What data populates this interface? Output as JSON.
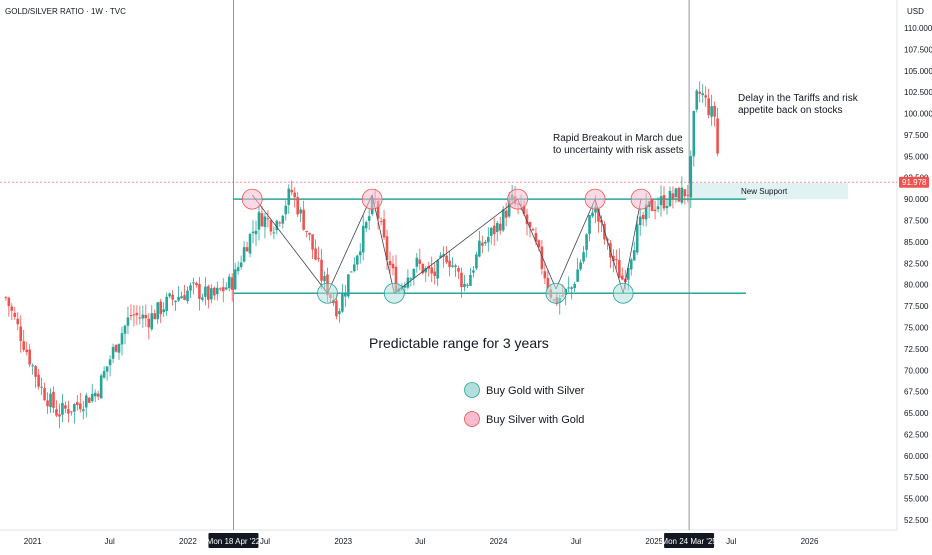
{
  "header": {
    "title": "GOLD/SILVER RATIO · 1W · TVC"
  },
  "price_axis": {
    "unit": "USD",
    "current_price": "91.978"
  },
  "colors": {
    "up": "#26a69a",
    "down": "#ef5350",
    "range": "#26a69a",
    "buy_gold": "#b2dfdb",
    "buy_silver": "#f8bbd0",
    "support_box": "#e0f2f1",
    "text": "#131722",
    "axis_bg": "#131722",
    "price_tag": "#ef5350"
  },
  "annotations": {
    "range_text": "Predictable range for 3 years",
    "breakout_line1": "Rapid Breakout in March due",
    "breakout_line2": "to uncertainty with risk assets",
    "tariff_line1": "Delay in the Tariffs and risk",
    "tariff_line2": "appetite back on stocks",
    "support_label": "New Support"
  },
  "legend": {
    "buy_gold": "Buy Gold with Silver",
    "buy_silver": "Buy Silver with Gold"
  },
  "chart_data": {
    "type": "candlestick",
    "symbol": "GOLD/SILVER RATIO",
    "interval": "1W",
    "source": "TVC",
    "ylim": [
      51.5,
      112.5
    ],
    "y_ticks": [
      "110.000",
      "107.500",
      "105.000",
      "102.500",
      "100.000",
      "97.500",
      "95.000",
      "92.500",
      "90.000",
      "87.500",
      "85.000",
      "82.500",
      "80.000",
      "77.500",
      "75.000",
      "72.500",
      "70.000",
      "67.500",
      "65.000",
      "62.500",
      "60.000",
      "57.500",
      "55.000",
      "52.500"
    ],
    "y_tick_values": [
      110,
      107.5,
      105,
      102.5,
      100,
      97.5,
      95,
      92.5,
      90,
      87.5,
      85,
      82.5,
      80,
      77.5,
      75,
      72.5,
      70,
      67.5,
      65,
      62.5,
      60,
      57.5,
      55,
      52.5
    ],
    "x_ticks": [
      {
        "label": "2021",
        "date": "2021-01-01"
      },
      {
        "label": "Jul",
        "date": "2021-07-01"
      },
      {
        "label": "2022",
        "date": "2022-01-01"
      },
      {
        "label": "Jul",
        "date": "2022-07-01"
      },
      {
        "label": "2023",
        "date": "2023-01-01"
      },
      {
        "label": "Jul",
        "date": "2023-07-01"
      },
      {
        "label": "2024",
        "date": "2024-01-01"
      },
      {
        "label": "Jul",
        "date": "2024-07-01"
      },
      {
        "label": "2025",
        "date": "2025-01-01"
      },
      {
        "label": "Jul",
        "date": "2025-07-01"
      },
      {
        "label": "2026",
        "date": "2026-01-01"
      }
    ],
    "x_start": "2020-10-28",
    "x_end": "2026-04-25",
    "highlight_dates": [
      {
        "label": "Mon 18 Apr '22",
        "date": "2022-04-18"
      },
      {
        "label": "Mon 24 Mar '25",
        "date": "2025-03-24"
      }
    ],
    "range_levels": {
      "top": 90.0,
      "bottom": 79.0
    },
    "support_zone": {
      "from": 90.0,
      "to": 91.9,
      "start": "2025-03-24"
    },
    "current_price": 91.978,
    "path": [
      {
        "date": "2020-10-30",
        "value": 78.5
      },
      {
        "date": "2020-12-05",
        "value": 74.0
      },
      {
        "date": "2021-01-20",
        "value": 68.0
      },
      {
        "date": "2021-03-01",
        "value": 65.0
      },
      {
        "date": "2021-04-15",
        "value": 66.0
      },
      {
        "date": "2021-06-01",
        "value": 67.5
      },
      {
        "date": "2021-07-15",
        "value": 73.0
      },
      {
        "date": "2021-08-20",
        "value": 76.5
      },
      {
        "date": "2021-10-01",
        "value": 76.0
      },
      {
        "date": "2021-11-15",
        "value": 78.0
      },
      {
        "date": "2022-01-10",
        "value": 79.5
      },
      {
        "date": "2022-03-01",
        "value": 78.5
      },
      {
        "date": "2022-04-18",
        "value": 80.5
      },
      {
        "date": "2022-05-15",
        "value": 84.5
      },
      {
        "date": "2022-06-20",
        "value": 88.0
      },
      {
        "date": "2022-07-25",
        "value": 87.0
      },
      {
        "date": "2022-09-01",
        "value": 91.0
      },
      {
        "date": "2022-10-10",
        "value": 86.0
      },
      {
        "date": "2022-11-10",
        "value": 81.0
      },
      {
        "date": "2022-12-20",
        "value": 77.0
      },
      {
        "date": "2023-01-20",
        "value": 82.0
      },
      {
        "date": "2023-02-25",
        "value": 87.0
      },
      {
        "date": "2023-03-15",
        "value": 90.0
      },
      {
        "date": "2023-04-15",
        "value": 83.0
      },
      {
        "date": "2023-05-10",
        "value": 79.5
      },
      {
        "date": "2023-06-20",
        "value": 82.5
      },
      {
        "date": "2023-08-01",
        "value": 81.0
      },
      {
        "date": "2023-09-01",
        "value": 83.5
      },
      {
        "date": "2023-10-15",
        "value": 79.8
      },
      {
        "date": "2023-11-20",
        "value": 84.5
      },
      {
        "date": "2024-01-01",
        "value": 87.0
      },
      {
        "date": "2024-02-01",
        "value": 89.8
      },
      {
        "date": "2024-03-01",
        "value": 88.0
      },
      {
        "date": "2024-04-01",
        "value": 84.0
      },
      {
        "date": "2024-05-10",
        "value": 78.0
      },
      {
        "date": "2024-06-20",
        "value": 79.5
      },
      {
        "date": "2024-07-20",
        "value": 84.0
      },
      {
        "date": "2024-08-10",
        "value": 89.5
      },
      {
        "date": "2024-09-15",
        "value": 84.0
      },
      {
        "date": "2024-10-20",
        "value": 80.5
      },
      {
        "date": "2024-11-20",
        "value": 86.0
      },
      {
        "date": "2024-12-20",
        "value": 89.0
      },
      {
        "date": "2025-02-01",
        "value": 90.0
      },
      {
        "date": "2025-03-01",
        "value": 90.5
      },
      {
        "date": "2025-03-24",
        "value": 91.0
      },
      {
        "date": "2025-04-07",
        "value": 101.5
      },
      {
        "date": "2025-04-21",
        "value": 102.5
      },
      {
        "date": "2025-05-15",
        "value": 100.0
      },
      {
        "date": "2025-05-26",
        "value": 99.8
      },
      {
        "date": "2025-06-02",
        "value": 91.98
      }
    ],
    "buy_gold_points": [
      {
        "date": "2022-11-25",
        "value": 79.0
      },
      {
        "date": "2023-05-01",
        "value": 79.0
      },
      {
        "date": "2024-05-15",
        "value": 79.0
      },
      {
        "date": "2024-10-20",
        "value": 79.0
      }
    ],
    "buy_silver_points": [
      {
        "date": "2022-06-01",
        "value": 90.0
      },
      {
        "date": "2023-03-10",
        "value": 90.0
      },
      {
        "date": "2024-02-15",
        "value": 90.0
      },
      {
        "date": "2024-08-15",
        "value": 90.0
      },
      {
        "date": "2024-12-01",
        "value": 90.0
      }
    ],
    "trend_lines": [
      {
        "from": {
          "date": "2022-06-01",
          "value": 90.5
        },
        "to": {
          "date": "2022-11-25",
          "value": 79.0
        }
      },
      {
        "from": {
          "date": "2022-11-25",
          "value": 79.0
        },
        "to": {
          "date": "2023-03-10",
          "value": 90.5
        }
      },
      {
        "from": {
          "date": "2023-03-10",
          "value": 90.5
        },
        "to": {
          "date": "2023-05-01",
          "value": 79.0
        }
      },
      {
        "from": {
          "date": "2023-05-01",
          "value": 79.0
        },
        "to": {
          "date": "2024-02-15",
          "value": 90.0
        }
      },
      {
        "from": {
          "date": "2024-02-15",
          "value": 90.0
        },
        "to": {
          "date": "2024-05-15",
          "value": 79.5
        }
      },
      {
        "from": {
          "date": "2024-05-15",
          "value": 79.5
        },
        "to": {
          "date": "2024-08-15",
          "value": 90.0
        }
      },
      {
        "from": {
          "date": "2024-08-15",
          "value": 90.0
        },
        "to": {
          "date": "2024-10-20",
          "value": 79.0
        }
      },
      {
        "from": {
          "date": "2024-10-20",
          "value": 79.0
        },
        "to": {
          "date": "2024-12-01",
          "value": 90.0
        }
      }
    ]
  }
}
